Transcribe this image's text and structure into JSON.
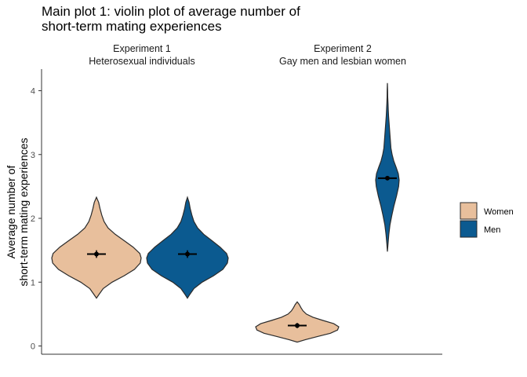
{
  "chart_data": {
    "type": "violin",
    "title_lines": [
      "Main plot 1: violin plot of average number of",
      "short-term mating experiences"
    ],
    "ylabel_lines": [
      "Average number of",
      "short-term mating experiences"
    ],
    "xlabel": "",
    "ylim": [
      -0.13,
      4.3
    ],
    "y_ticks": [
      0,
      1,
      2,
      3,
      4
    ],
    "grid": false,
    "legend_position": "right",
    "legend": [
      {
        "name": "Women",
        "color": "#E8BF9C"
      },
      {
        "name": "Men",
        "color": "#0B5A90"
      }
    ],
    "panels": [
      {
        "strip_lines": [
          "Experiment 1",
          "Heterosexual individuals"
        ],
        "violins": [
          {
            "group": "Women",
            "mean": 1.44,
            "ci": [
              1.38,
              1.5
            ],
            "profile": [
              [
                0.75,
                0
              ],
              [
                0.8,
                0.05
              ],
              [
                0.9,
                0.15
              ],
              [
                1.0,
                0.35
              ],
              [
                1.1,
                0.62
              ],
              [
                1.2,
                0.85
              ],
              [
                1.3,
                0.98
              ],
              [
                1.38,
                1.0
              ],
              [
                1.45,
                0.97
              ],
              [
                1.55,
                0.82
              ],
              [
                1.65,
                0.62
              ],
              [
                1.75,
                0.42
              ],
              [
                1.85,
                0.26
              ],
              [
                1.95,
                0.17
              ],
              [
                2.05,
                0.12
              ],
              [
                2.15,
                0.08
              ],
              [
                2.25,
                0.05
              ],
              [
                2.33,
                0
              ]
            ]
          },
          {
            "group": "Men",
            "mean": 1.44,
            "ci": [
              1.38,
              1.5
            ],
            "profile": [
              [
                0.75,
                0
              ],
              [
                0.8,
                0.05
              ],
              [
                0.9,
                0.16
              ],
              [
                1.0,
                0.36
              ],
              [
                1.1,
                0.64
              ],
              [
                1.2,
                0.87
              ],
              [
                1.3,
                0.98
              ],
              [
                1.38,
                1.0
              ],
              [
                1.45,
                0.96
              ],
              [
                1.55,
                0.8
              ],
              [
                1.65,
                0.6
              ],
              [
                1.75,
                0.4
              ],
              [
                1.85,
                0.25
              ],
              [
                1.95,
                0.16
              ],
              [
                2.05,
                0.11
              ],
              [
                2.15,
                0.07
              ],
              [
                2.25,
                0.04
              ],
              [
                2.33,
                0
              ]
            ]
          }
        ]
      },
      {
        "strip_lines": [
          "Experiment 2",
          "Gay men and lesbian women"
        ],
        "violins": [
          {
            "group": "Women",
            "mean": 0.32,
            "ci": [
              0.28,
              0.36
            ],
            "profile": [
              [
                0.06,
                0
              ],
              [
                0.1,
                0.2
              ],
              [
                0.15,
                0.5
              ],
              [
                0.2,
                0.8
              ],
              [
                0.25,
                0.97
              ],
              [
                0.3,
                1.0
              ],
              [
                0.35,
                0.88
              ],
              [
                0.4,
                0.62
              ],
              [
                0.45,
                0.38
              ],
              [
                0.5,
                0.22
              ],
              [
                0.55,
                0.14
              ],
              [
                0.6,
                0.09
              ],
              [
                0.65,
                0.05
              ],
              [
                0.69,
                0
              ]
            ]
          },
          {
            "group": "Men",
            "mean": 2.63,
            "ci": [
              2.6,
              2.66
            ],
            "profile": [
              [
                1.48,
                0
              ],
              [
                1.6,
                0.05
              ],
              [
                1.75,
                0.12
              ],
              [
                1.9,
                0.22
              ],
              [
                2.05,
                0.38
              ],
              [
                2.2,
                0.56
              ],
              [
                2.35,
                0.77
              ],
              [
                2.5,
                0.95
              ],
              [
                2.6,
                1.0
              ],
              [
                2.7,
                0.93
              ],
              [
                2.8,
                0.74
              ],
              [
                2.9,
                0.54
              ],
              [
                3.0,
                0.4
              ],
              [
                3.1,
                0.3
              ],
              [
                3.2,
                0.26
              ],
              [
                3.3,
                0.22
              ],
              [
                3.4,
                0.18
              ],
              [
                3.5,
                0.14
              ],
              [
                3.6,
                0.1
              ],
              [
                3.7,
                0.07
              ],
              [
                3.8,
                0.05
              ],
              [
                3.9,
                0.03
              ],
              [
                4.0,
                0.02
              ],
              [
                4.12,
                0
              ]
            ]
          }
        ]
      }
    ]
  }
}
